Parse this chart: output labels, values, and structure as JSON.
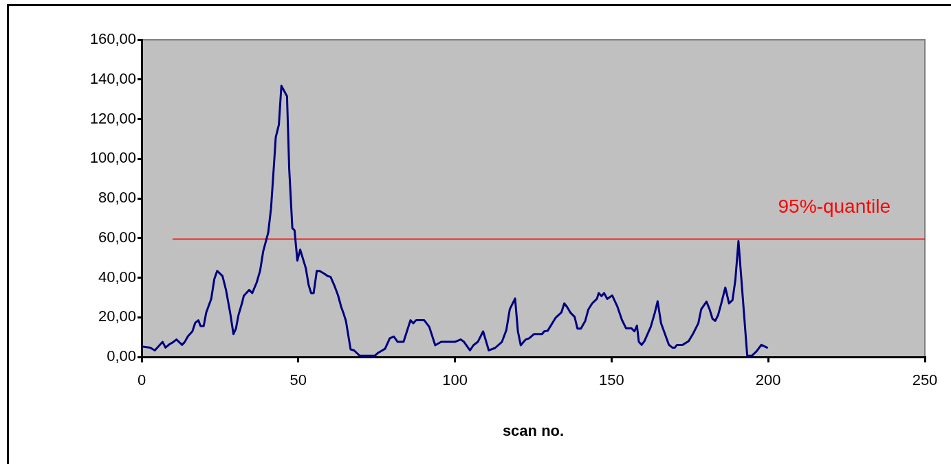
{
  "chart_data": {
    "type": "line",
    "xlabel": "scan no.",
    "xlim": [
      0,
      250
    ],
    "xticks": [
      0,
      50,
      100,
      150,
      200,
      250
    ],
    "ylim": [
      0,
      160
    ],
    "yticks": [
      {
        "value": 0,
        "label": "0,00"
      },
      {
        "value": 20,
        "label": "20,00"
      },
      {
        "value": 40,
        "label": "40,00"
      },
      {
        "value": 60,
        "label": "60,00"
      },
      {
        "value": 80,
        "label": "80,00"
      },
      {
        "value": 100,
        "label": "100,00"
      },
      {
        "value": 120,
        "label": "120,00"
      },
      {
        "value": 140,
        "label": "140,00"
      },
      {
        "value": 160,
        "label": "160,00"
      }
    ],
    "grid": false,
    "marker": "none",
    "line_style": "solid",
    "series": [
      {
        "color": "#000080",
        "x": [
          0,
          2.7,
          4.2,
          6.7,
          7.6,
          8.9,
          10.0,
          11.1,
          12.9,
          13.7,
          14.8,
          16.2,
          17.1,
          18.1,
          18.8,
          19.8,
          20.6,
          22.2,
          23.2,
          24.1,
          25.8,
          26.9,
          28.3,
          29.3,
          30.1,
          30.9,
          32.0,
          32.6,
          34.3,
          35.3,
          36.7,
          37.8,
          38.8,
          40.4,
          41.3,
          42.2,
          42.8,
          43.8,
          44.6,
          46.4,
          47.1,
          48.1,
          48.8,
          49.7,
          50.6,
          52.4,
          53.3,
          54.1,
          54.9,
          55.9,
          56.8,
          58.3,
          59.4,
          60.3,
          61.6,
          62.7,
          63.7,
          64.5,
          65.2,
          66.7,
          67.8,
          69.6,
          74.4,
          75.5,
          77.7,
          79.2,
          80.5,
          81.7,
          83.6,
          85.8,
          86.7,
          87.6,
          90.2,
          91.8,
          93.7,
          95.6,
          100.0,
          101.8,
          102.9,
          104.8,
          105.9,
          107.3,
          109.0,
          110.8,
          112.8,
          115.0,
          116.4,
          117.5,
          119.2,
          120.1,
          121.0,
          122.6,
          123.7,
          125.2,
          127.8,
          128.5,
          129.6,
          132.2,
          134.0,
          134.9,
          135.8,
          136.9,
          138.2,
          139.1,
          140.2,
          141.6,
          142.6,
          143.8,
          145.3,
          145.9,
          146.8,
          147.6,
          148.6,
          150.2,
          151.9,
          153.3,
          154.6,
          156.3,
          157.3,
          158.1,
          158.7,
          159.6,
          160.5,
          162.5,
          163.8,
          164.7,
          165.8,
          168.3,
          169.4,
          170.2,
          170.9,
          172.7,
          174.6,
          176.0,
          177.7,
          178.6,
          180.3,
          181.3,
          182.2,
          183.1,
          184.0,
          185.1,
          186.3,
          187.5,
          188.6,
          189.5,
          190.5,
          193.3,
          194.8,
          196.3,
          197.8,
          199.6
        ],
        "values": [
          5.3,
          4.7,
          3.3,
          7.6,
          4.7,
          6.4,
          7.4,
          8.8,
          6.1,
          7.4,
          10.5,
          12.9,
          17.2,
          18.5,
          15.6,
          15.6,
          22.3,
          29.3,
          39.3,
          43.4,
          40.8,
          34.0,
          21.8,
          11.5,
          14.3,
          21.1,
          27.0,
          30.8,
          33.8,
          32.2,
          37.5,
          43.4,
          53.3,
          62.7,
          75.0,
          96.1,
          110.8,
          117.2,
          136.8,
          131.5,
          94.9,
          65.0,
          63.9,
          48.6,
          54.1,
          44.8,
          36.3,
          32.2,
          32.2,
          43.4,
          43.4,
          42.0,
          40.8,
          40.4,
          35.7,
          31.0,
          25.2,
          21.7,
          18.2,
          3.8,
          3.3,
          0.6,
          0.6,
          2.1,
          4.1,
          9.4,
          10.3,
          7.6,
          7.6,
          18.5,
          17.0,
          18.5,
          18.5,
          15.2,
          5.9,
          7.6,
          7.6,
          8.8,
          7.6,
          3.3,
          5.9,
          7.6,
          12.9,
          3.3,
          4.5,
          7.6,
          13.5,
          24.0,
          29.5,
          12.9,
          5.9,
          8.8,
          9.4,
          11.5,
          11.5,
          12.9,
          13.2,
          19.9,
          22.5,
          27.0,
          25.2,
          22.3,
          20.2,
          14.3,
          14.3,
          18.2,
          24.0,
          27.0,
          29.3,
          32.2,
          30.7,
          32.2,
          29.3,
          31.0,
          25.2,
          18.7,
          14.5,
          14.5,
          12.9,
          15.8,
          7.6,
          6.1,
          8.0,
          15.2,
          22.3,
          28.1,
          17.0,
          6.1,
          4.7,
          4.7,
          6.1,
          6.1,
          8.0,
          11.7,
          17.0,
          24.0,
          27.9,
          24.0,
          19.3,
          18.2,
          21.1,
          27.5,
          35.0,
          27.0,
          28.7,
          38.7,
          58.4,
          0.6,
          0.6,
          2.9,
          6.1,
          4.7
        ]
      },
      {
        "type": "line",
        "name": "95%-quantile",
        "color": "#ff0000",
        "x": [
          10,
          250
        ],
        "values": [
          59.5,
          59.5
        ]
      }
    ]
  }
}
